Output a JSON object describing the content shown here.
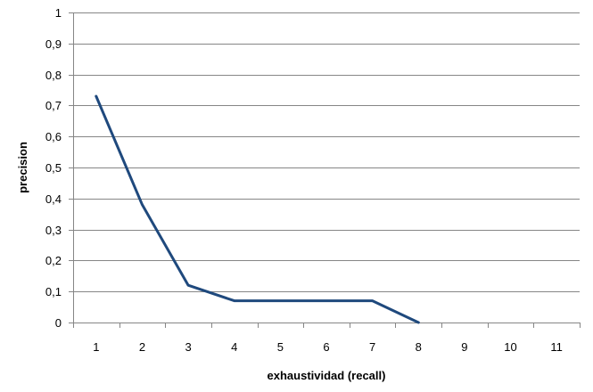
{
  "chart_data": {
    "type": "line",
    "title": "",
    "xlabel": "exhaustividad (recall)",
    "ylabel": "precision",
    "categories": [
      "1",
      "2",
      "3",
      "4",
      "5",
      "6",
      "7",
      "8",
      "9",
      "10",
      "11"
    ],
    "series": [
      {
        "values": [
          0.73,
          0.38,
          0.12,
          0.07,
          0.07,
          0.07,
          0.07,
          0.0,
          null,
          null,
          null
        ],
        "color": "#1F497D"
      }
    ],
    "y_ticks": [
      "0",
      "0,1",
      "0,2",
      "0,3",
      "0,4",
      "0,5",
      "0,6",
      "0,7",
      "0,8",
      "0,9",
      "1"
    ],
    "ylim": [
      0,
      1
    ],
    "grid": true,
    "legend": "none",
    "colors": {
      "gridline": "#868686",
      "axis": "#868686"
    }
  }
}
